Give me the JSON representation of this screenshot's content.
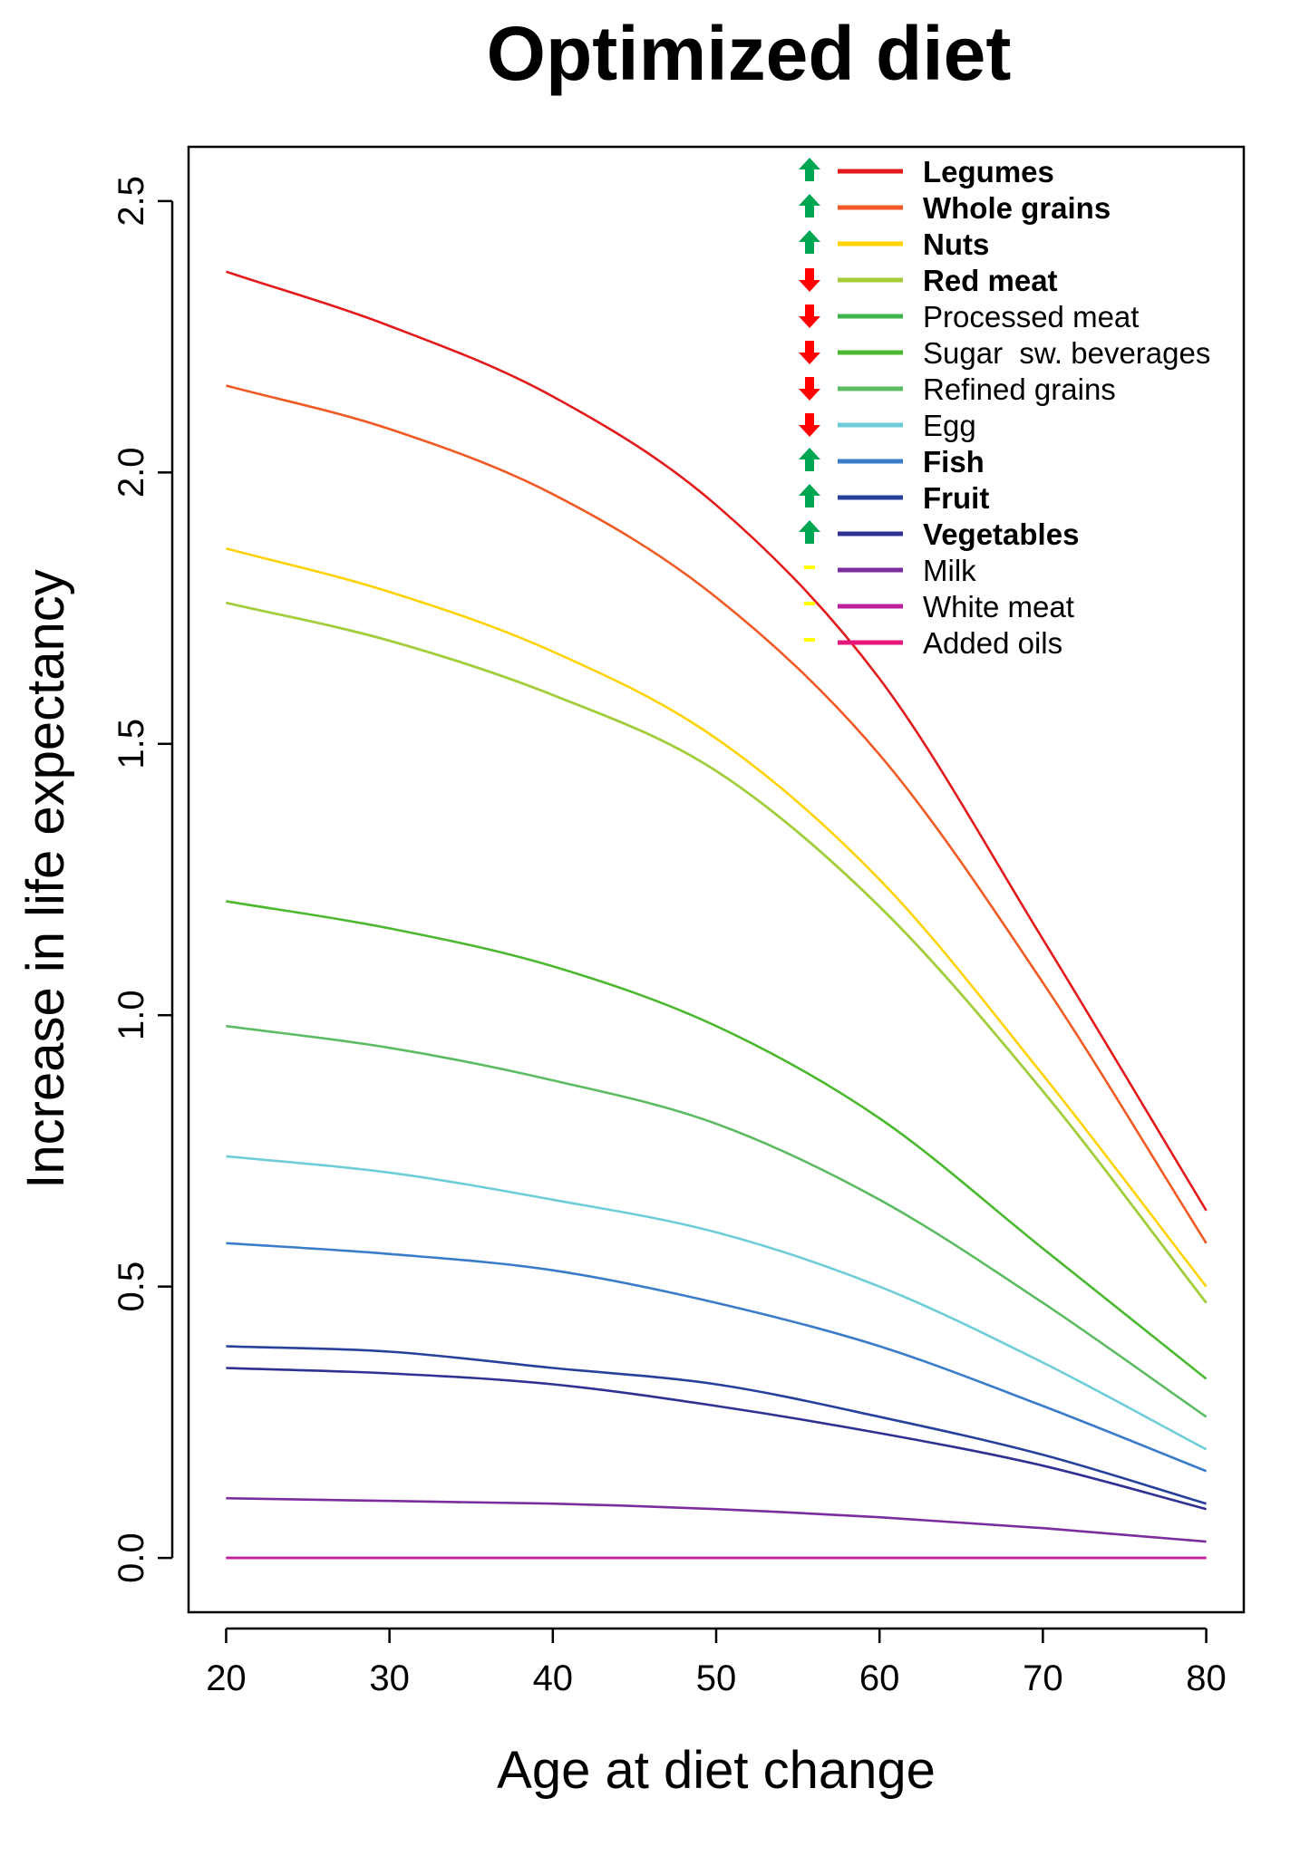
{
  "chart_data": {
    "type": "line",
    "title": "Optimized diet",
    "xlabel": "Age at diet change",
    "ylabel": "Increase in life expectancy",
    "xlim": [
      17.7,
      82.3
    ],
    "ylim": [
      -0.1,
      2.6
    ],
    "x_ticks": [
      20,
      30,
      40,
      50,
      60,
      70,
      80
    ],
    "y_ticks": [
      "0.0",
      "0.5",
      "1.0",
      "1.5",
      "2.0",
      "2.5"
    ],
    "x": [
      20,
      30,
      40,
      50,
      60,
      70,
      80
    ],
    "series": [
      {
        "name": "Legumes",
        "color": "#e31a1c",
        "bold": true,
        "marker": "up",
        "marker_color": "#00a651",
        "values": [
          2.37,
          2.27,
          2.14,
          1.94,
          1.62,
          1.14,
          0.64
        ]
      },
      {
        "name": "Whole grains",
        "color": "#f15a24",
        "bold": true,
        "marker": "up",
        "marker_color": "#00a651",
        "values": [
          2.16,
          2.08,
          1.96,
          1.77,
          1.48,
          1.06,
          0.58
        ]
      },
      {
        "name": "Nuts",
        "color": "#ffd200",
        "bold": true,
        "marker": "up",
        "marker_color": "#00a651",
        "values": [
          1.86,
          1.78,
          1.67,
          1.51,
          1.25,
          0.89,
          0.5
        ]
      },
      {
        "name": "Red meat",
        "color": "#a6ce39",
        "bold": true,
        "marker": "down",
        "marker_color": "#ff0000",
        "values": [
          1.76,
          1.69,
          1.59,
          1.45,
          1.2,
          0.86,
          0.47
        ]
      },
      {
        "name": "Processed meat",
        "color": "#3cb44b",
        "bold": false,
        "marker": "down",
        "marker_color": "#ff0000",
        "values": [
          1.76,
          1.69,
          1.59,
          1.45,
          1.2,
          0.86,
          0.47
        ]
      },
      {
        "name": "Sugar  sw. beverages",
        "color": "#4cb830",
        "bold": false,
        "marker": "down",
        "marker_color": "#ff0000",
        "values": [
          1.21,
          1.16,
          1.09,
          0.98,
          0.81,
          0.57,
          0.33
        ]
      },
      {
        "name": "Refined grains",
        "color": "#5dbb63",
        "bold": false,
        "marker": "down",
        "marker_color": "#ff0000",
        "values": [
          0.98,
          0.94,
          0.88,
          0.8,
          0.66,
          0.47,
          0.26
        ]
      },
      {
        "name": "Egg",
        "color": "#6ecdd8",
        "bold": false,
        "marker": "down",
        "marker_color": "#ff0000",
        "values": [
          0.74,
          0.71,
          0.66,
          0.6,
          0.5,
          0.36,
          0.2
        ]
      },
      {
        "name": "Fish",
        "color": "#3a7cc9",
        "bold": true,
        "marker": "up",
        "marker_color": "#00a651",
        "values": [
          0.58,
          0.56,
          0.53,
          0.47,
          0.39,
          0.28,
          0.16
        ]
      },
      {
        "name": "Fruit",
        "color": "#27409b",
        "bold": true,
        "marker": "up",
        "marker_color": "#00a651",
        "values": [
          0.39,
          0.38,
          0.35,
          0.32,
          0.26,
          0.19,
          0.1
        ]
      },
      {
        "name": "Vegetables",
        "color": "#2e3192",
        "bold": true,
        "marker": "up",
        "marker_color": "#00a651",
        "values": [
          0.35,
          0.34,
          0.32,
          0.28,
          0.23,
          0.17,
          0.09
        ]
      },
      {
        "name": "Milk",
        "color": "#7b2d9e",
        "bold": false,
        "marker": "flat",
        "marker_color": "#ffff00",
        "values": [
          0.11,
          0.105,
          0.1,
          0.09,
          0.075,
          0.055,
          0.03
        ]
      },
      {
        "name": "White meat",
        "color": "#c0209c",
        "bold": false,
        "marker": "flat",
        "marker_color": "#ffff00",
        "values": [
          0.0,
          0.0,
          0.0,
          0.0,
          0.0,
          0.0,
          0.0
        ]
      },
      {
        "name": "Added oils",
        "color": "#e8177d",
        "bold": false,
        "marker": "flat",
        "marker_color": "#ffff00",
        "values": [
          0.0,
          0.0,
          0.0,
          0.0,
          0.0,
          0.0,
          0.0
        ]
      }
    ],
    "legend_position": "top-right",
    "grid": false
  }
}
